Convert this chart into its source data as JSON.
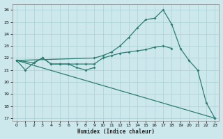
{
  "xlabel": "Humidex (Indice chaleur)",
  "xlim": [
    -0.5,
    23.5
  ],
  "ylim": [
    16.8,
    26.5
  ],
  "yticks": [
    17,
    18,
    19,
    20,
    21,
    22,
    23,
    24,
    25,
    26
  ],
  "xticks": [
    0,
    1,
    2,
    3,
    4,
    5,
    6,
    7,
    8,
    9,
    10,
    11,
    12,
    13,
    14,
    15,
    16,
    17,
    18,
    19,
    20,
    21,
    22,
    23
  ],
  "bg_color": "#cce8ec",
  "line_color": "#2e7d72",
  "grid_color": "#aad0d5",
  "line1": {
    "x": [
      0,
      1,
      2,
      3,
      4,
      5,
      6,
      7,
      8,
      9
    ],
    "y": [
      21.8,
      21.0,
      21.6,
      22.0,
      21.5,
      21.5,
      21.5,
      21.2,
      21.0,
      21.2
    ]
  },
  "line2": {
    "x": [
      0,
      2,
      3,
      4,
      5,
      6,
      7,
      8,
      9,
      10,
      11,
      12,
      13,
      14,
      15,
      16,
      17,
      18
    ],
    "y": [
      21.8,
      21.6,
      22.0,
      21.5,
      21.5,
      21.5,
      21.5,
      21.5,
      21.5,
      22.0,
      22.2,
      22.4,
      22.5,
      22.6,
      22.7,
      22.9,
      23.0,
      22.8
    ]
  },
  "line3": {
    "x": [
      0,
      9,
      10,
      11,
      12,
      13,
      14,
      15,
      16,
      17,
      18,
      19,
      20,
      21,
      22,
      23
    ],
    "y": [
      21.8,
      22.0,
      22.2,
      22.5,
      23.0,
      23.7,
      24.5,
      25.2,
      25.3,
      26.0,
      24.8,
      22.8,
      21.8,
      21.0,
      18.3,
      17.0
    ]
  },
  "line4": {
    "x": [
      0,
      23
    ],
    "y": [
      21.8,
      17.0
    ]
  }
}
